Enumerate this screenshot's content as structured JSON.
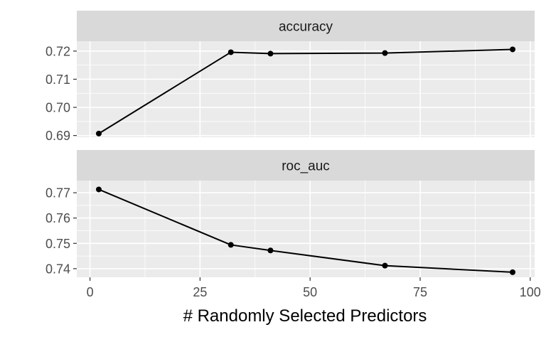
{
  "chart_data": {
    "type": "line",
    "xlabel": "# Randomly Selected Predictors",
    "x": [
      2,
      32,
      41,
      67,
      96
    ],
    "xlim": [
      -3,
      101
    ],
    "x_ticks": [
      0,
      25,
      50,
      75,
      100
    ],
    "x_tick_labels": [
      "0",
      "25",
      "50",
      "75",
      "100"
    ],
    "grid": true,
    "facets": [
      {
        "name": "accuracy",
        "values": [
          0.6907,
          0.7196,
          0.7191,
          0.7193,
          0.7206
        ],
        "ylim": [
          0.6894,
          0.7235
        ],
        "y_ticks": [
          0.69,
          0.7,
          0.71,
          0.72
        ],
        "y_tick_labels": [
          "0.69",
          "0.70",
          "0.71",
          "0.72"
        ]
      },
      {
        "name": "roc_auc",
        "values": [
          0.7713,
          0.7494,
          0.7472,
          0.7412,
          0.7386
        ],
        "ylim": [
          0.7366,
          0.7748
        ],
        "y_ticks": [
          0.74,
          0.75,
          0.76,
          0.77
        ],
        "y_tick_labels": [
          "0.74",
          "0.75",
          "0.76",
          "0.77"
        ]
      }
    ],
    "colors": {
      "panel_background": "#ebebeb",
      "strip_background": "#d9d9d9",
      "grid": "#ffffff",
      "line": "#000000"
    }
  }
}
